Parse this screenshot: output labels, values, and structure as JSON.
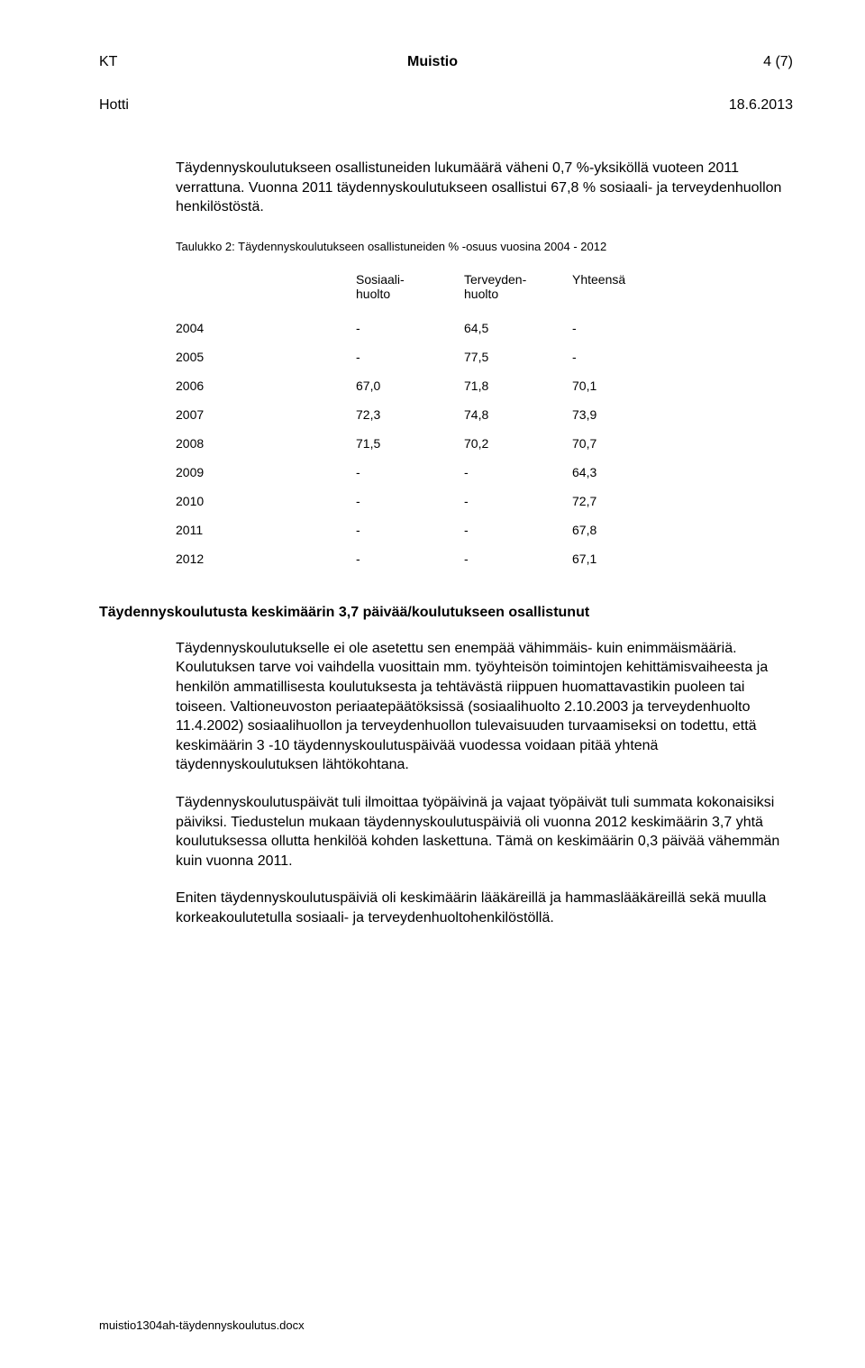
{
  "header": {
    "left": "KT",
    "center": "Muistio",
    "right": "4 (7)",
    "author": "Hotti",
    "date": "18.6.2013"
  },
  "intro": "Täydennyskoulutukseen osallistuneiden lukumäärä väheni 0,7 %-yksiköllä vuoteen 2011 verrattuna. Vuonna 2011 täydennyskoulutukseen osallistui 67,8 % sosiaali- ja terveydenhuollon henkilöstöstä.",
  "table": {
    "caption": "Taulukko 2: Täydennyskoulutukseen osallistuneiden % -osuus vuosina 2004 - 2012",
    "columns": [
      "",
      "Sosiaali-\nhuolto",
      "Terveyden-\nhuolto",
      "Yhteensä"
    ],
    "rows": [
      [
        "2004",
        "-",
        "64,5",
        "-"
      ],
      [
        "2005",
        "-",
        "77,5",
        "-"
      ],
      [
        "2006",
        "67,0",
        "71,8",
        "70,1"
      ],
      [
        "2007",
        "72,3",
        "74,8",
        "73,9"
      ],
      [
        "2008",
        "71,5",
        "70,2",
        "70,7"
      ],
      [
        "2009",
        "-",
        "-",
        "64,3"
      ],
      [
        "2010",
        "-",
        "-",
        "72,7"
      ],
      [
        "2011",
        "-",
        "-",
        "67,8"
      ],
      [
        "2012",
        "-",
        "-",
        "67,1"
      ]
    ],
    "fontsize": 14,
    "caption_fontsize": 13
  },
  "section_heading": "Täydennyskoulutusta keskimäärin 3,7 päivää/koulutukseen osallistunut",
  "paragraphs": [
    "Täydennyskoulutukselle ei ole asetettu sen enempää vähimmäis- kuin enimmäismääriä. Koulutuksen tarve voi vaihdella vuosittain mm. työyhteisön toimintojen kehittämisvaiheesta ja henkilön ammatillisesta koulutuksesta ja tehtävästä riippuen huomattavastikin puoleen tai toiseen. Valtioneuvoston periaatepäätöksissä (sosiaalihuolto 2.10.2003 ja terveydenhuolto 11.4.2002) sosiaalihuollon ja terveydenhuollon tulevaisuuden turvaamiseksi on todettu, että keskimäärin 3 -10 täydennyskoulutuspäivää vuodessa voidaan pitää yhtenä täydennyskoulutuksen lähtökohtana.",
    "Täydennyskoulutuspäivät tuli ilmoittaa työpäivinä ja vajaat työpäivät tuli summata kokonaisiksi päiviksi. Tiedustelun mukaan täydennyskoulutuspäiviä oli vuonna 2012 keskimäärin 3,7 yhtä koulutuksessa ollutta henkilöä kohden laskettuna. Tämä on keskimäärin 0,3 päivää vähemmän kuin vuonna 2011.",
    "Eniten täydennyskoulutuspäiviä oli keskimäärin lääkäreillä ja hammaslääkäreillä sekä muulla korkeakoulutetulla sosiaali- ja terveydenhuoltohenkilöstöllä."
  ],
  "footer": "muistio1304ah-täydennyskoulutus.docx",
  "colors": {
    "text": "#000000",
    "background": "#ffffff"
  }
}
